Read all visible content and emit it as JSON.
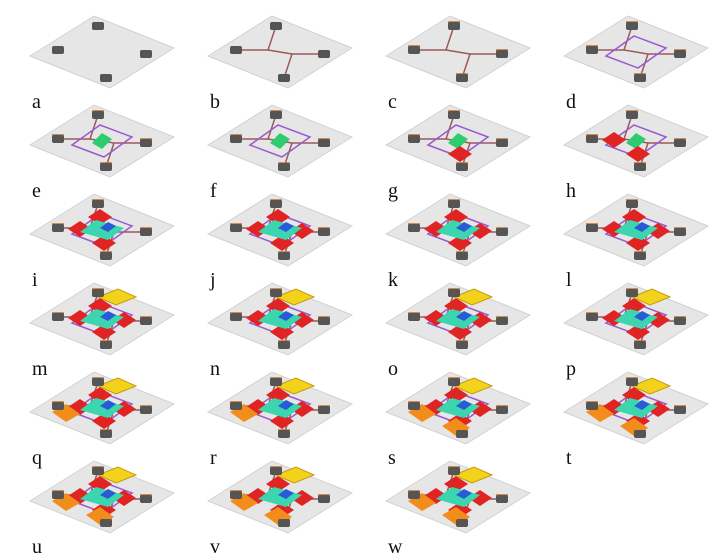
{
  "panels": {
    "labels": [
      "a",
      "b",
      "c",
      "d",
      "e",
      "f",
      "g",
      "h",
      "i",
      "j",
      "k",
      "l",
      "m",
      "n",
      "o",
      "p",
      "q",
      "r",
      "s",
      "t",
      "u",
      "v",
      "w"
    ]
  }
}
